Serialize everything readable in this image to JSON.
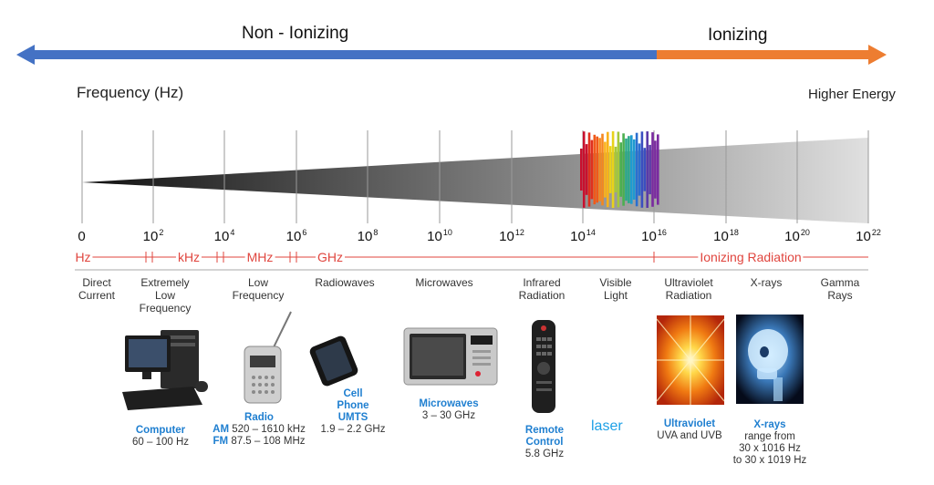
{
  "arrows": {
    "non_ionizing": "Non - Ionizing",
    "ionizing": "Ionizing",
    "colors": {
      "non_ionizing": "#4472c4",
      "ionizing": "#ed7d31"
    }
  },
  "axis": {
    "frequency_label": "Frequency (Hz)",
    "higher_energy": "Higher Energy"
  },
  "ticks": [
    {
      "base": "0",
      "exp": ""
    },
    {
      "base": "10",
      "exp": "2"
    },
    {
      "base": "10",
      "exp": "4"
    },
    {
      "base": "10",
      "exp": "6"
    },
    {
      "base": "10",
      "exp": "8"
    },
    {
      "base": "10",
      "exp": "10"
    },
    {
      "base": "10",
      "exp": "12"
    },
    {
      "base": "10",
      "exp": "14"
    },
    {
      "base": "10",
      "exp": "16"
    },
    {
      "base": "10",
      "exp": "18"
    },
    {
      "base": "10",
      "exp": "20"
    },
    {
      "base": "10",
      "exp": "22"
    }
  ],
  "bands": {
    "hz": "Hz",
    "khz": "kHz",
    "mhz": "MHz",
    "ghz": "GHz",
    "ionizing_radiation": "Ionizing Radiation"
  },
  "categories": [
    {
      "line1": "Direct",
      "line2": "Current",
      "line3": ""
    },
    {
      "line1": "Extremely",
      "line2": "Low",
      "line3": "Frequency"
    },
    {
      "line1": "Low",
      "line2": "Frequency",
      "line3": ""
    },
    {
      "line1": "Radiowaves",
      "line2": "",
      "line3": ""
    },
    {
      "line1": "Microwaves",
      "line2": "",
      "line3": ""
    },
    {
      "line1": "Infrared",
      "line2": "Radiation",
      "line3": ""
    },
    {
      "line1": "Visible",
      "line2": "Light",
      "line3": ""
    },
    {
      "line1": "Ultraviolet",
      "line2": "Radiation",
      "line3": ""
    },
    {
      "line1": "X-rays",
      "line2": "",
      "line3": ""
    },
    {
      "line1": "Gamma",
      "line2": "Rays",
      "line3": ""
    }
  ],
  "captions": {
    "computer": {
      "title": "Computer",
      "range": "60 – 100 Hz"
    },
    "radio": {
      "title": "Radio",
      "am_label": "AM",
      "am_range": "520 – 1610 kHz",
      "fm_label": "FM",
      "fm_range": "87.5 – 108 MHz"
    },
    "cell": {
      "title1": "Cell",
      "title2": "Phone",
      "title3": "UMTS",
      "range": "1.9 – 2.2 GHz"
    },
    "microwaves": {
      "title": "Microwaves",
      "range": "3 – 30 GHz"
    },
    "remote": {
      "title1": "Remote",
      "title2": "Control",
      "range": "5.8 GHz"
    },
    "laser": "laser",
    "ultraviolet": {
      "title": "Ultraviolet",
      "range": "UVA and UVB"
    },
    "xrays": {
      "title": "X-rays",
      "line1": "range from",
      "line2": "30 x 1016 Hz",
      "line3": "to 30 x 1019 Hz"
    }
  }
}
